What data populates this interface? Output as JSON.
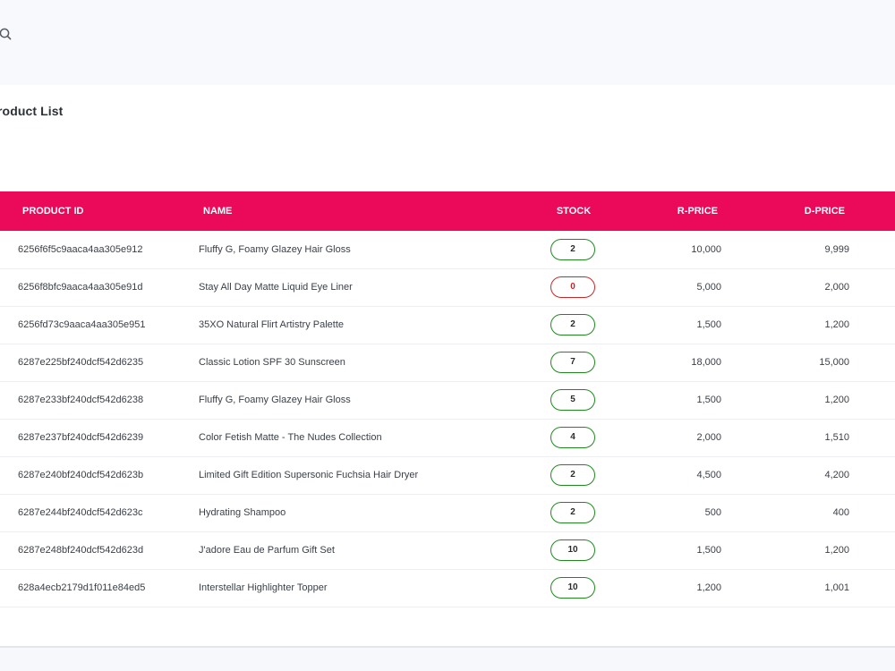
{
  "header": {
    "search_icon": "search-icon"
  },
  "page": {
    "title": "roduct List"
  },
  "table": {
    "columns": {
      "id": "PRODUCT ID",
      "name": "NAME",
      "stock": "STOCK",
      "rprice": "R-PRICE",
      "dprice": "D-PRICE"
    },
    "colors": {
      "header_bg": "#eb0a5a",
      "in_stock": "#1e8a1e",
      "out_of_stock": "#c62828"
    },
    "rows": [
      {
        "id": "6256f6f5c9aaca4aa305e912",
        "name": "Fluffy G, Foamy Glazey Hair Gloss",
        "stock": "2",
        "rprice": "10,000",
        "dprice": "9,999"
      },
      {
        "id": "6256f8bfc9aaca4aa305e91d",
        "name": "Stay All Day Matte Liquid Eye Liner",
        "stock": "0",
        "rprice": "5,000",
        "dprice": "2,000"
      },
      {
        "id": "6256fd73c9aaca4aa305e951",
        "name": "35XO Natural Flirt Artistry Palette",
        "stock": "2",
        "rprice": "1,500",
        "dprice": "1,200"
      },
      {
        "id": "6287e225bf240dcf542d6235",
        "name": "Classic Lotion SPF 30 Sunscreen",
        "stock": "7",
        "rprice": "18,000",
        "dprice": "15,000"
      },
      {
        "id": "6287e233bf240dcf542d6238",
        "name": "Fluffy G, Foamy Glazey Hair Gloss",
        "stock": "5",
        "rprice": "1,500",
        "dprice": "1,200"
      },
      {
        "id": "6287e237bf240dcf542d6239",
        "name": "Color Fetish Matte - The Nudes Collection",
        "stock": "4",
        "rprice": "2,000",
        "dprice": "1,510"
      },
      {
        "id": "6287e240bf240dcf542d623b",
        "name": "Limited Gift Edition Supersonic Fuchsia Hair Dryer",
        "stock": "2",
        "rprice": "4,500",
        "dprice": "4,200"
      },
      {
        "id": "6287e244bf240dcf542d623c",
        "name": "Hydrating Shampoo",
        "stock": "2",
        "rprice": "500",
        "dprice": "400"
      },
      {
        "id": "6287e248bf240dcf542d623d",
        "name": "J'adore Eau de Parfum Gift Set",
        "stock": "10",
        "rprice": "1,500",
        "dprice": "1,200"
      },
      {
        "id": "628a4ecb2179d1f011e84ed5",
        "name": "Interstellar Highlighter Topper",
        "stock": "10",
        "rprice": "1,200",
        "dprice": "1,001"
      }
    ]
  }
}
